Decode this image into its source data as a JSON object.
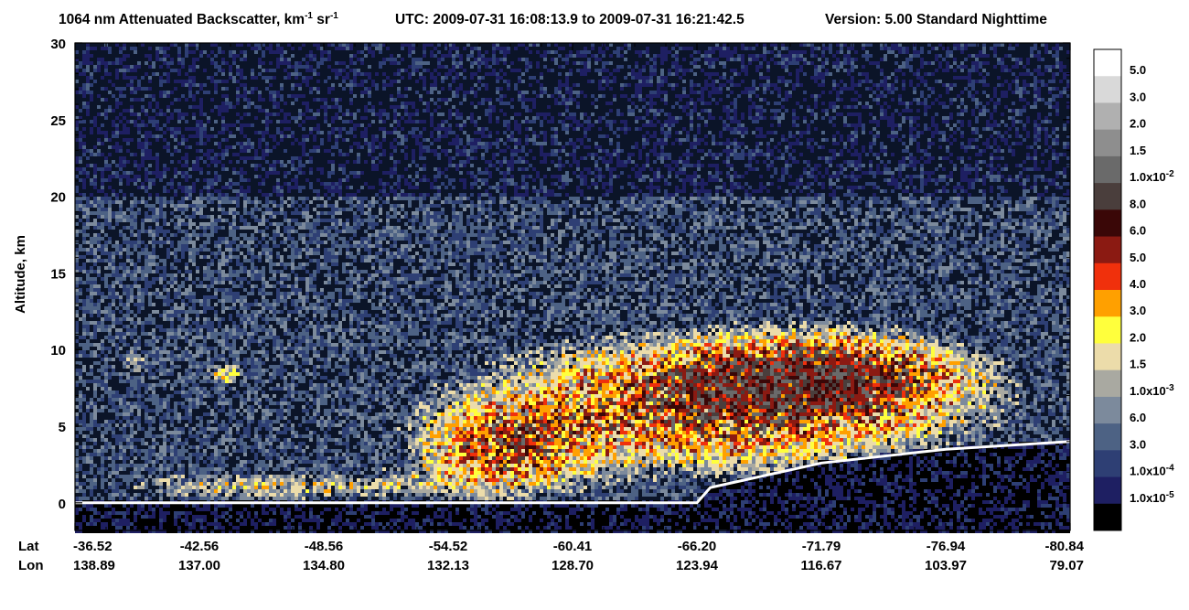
{
  "chart_data": {
    "type": "heatmap",
    "title": {
      "main": "1064 nm Attenuated Backscatter, km",
      "unit_km_exp": "-1",
      "unit_sr": " sr",
      "unit_sr_exp": "-1",
      "utc": "UTC:  2009-07-31 16:08:13.9  to  2009-07-31 16:21:42.5",
      "version": "Version: 5.00  Standard  Nighttime"
    },
    "ylabel": "Altitude, km",
    "ylim": [
      -1.8,
      30
    ],
    "y_ticks": [
      0,
      5,
      10,
      15,
      20,
      25,
      30
    ],
    "x_row_labels": [
      "Lat",
      "Lon"
    ],
    "x_ticks": [
      {
        "lat": "-36.52",
        "lon": "138.89"
      },
      {
        "lat": "-42.56",
        "lon": "137.00"
      },
      {
        "lat": "-48.56",
        "lon": "134.80"
      },
      {
        "lat": "-54.52",
        "lon": "132.13"
      },
      {
        "lat": "-60.41",
        "lon": "128.70"
      },
      {
        "lat": "-66.20",
        "lon": "123.94"
      },
      {
        "lat": "-71.79",
        "lon": "116.67"
      },
      {
        "lat": "-76.94",
        "lon": "103.97"
      },
      {
        "lat": "-80.84",
        "lon": "79.07"
      }
    ],
    "colorbar": [
      {
        "color": "#ffffff",
        "label": "5.0",
        "exp": ""
      },
      {
        "color": "#d9d9d9",
        "label": "3.0",
        "exp": ""
      },
      {
        "color": "#b0b0b0",
        "label": "2.0",
        "exp": ""
      },
      {
        "color": "#8e8e8e",
        "label": "1.5",
        "exp": ""
      },
      {
        "color": "#6a6a6a",
        "label": "1.0x10",
        "exp": "-2"
      },
      {
        "color": "#4a3e3c",
        "label": "8.0",
        "exp": ""
      },
      {
        "color": "#3a0707",
        "label": "6.0",
        "exp": ""
      },
      {
        "color": "#8b1a12",
        "label": "5.0",
        "exp": ""
      },
      {
        "color": "#f0300c",
        "label": "4.0",
        "exp": ""
      },
      {
        "color": "#ffa000",
        "label": "3.0",
        "exp": ""
      },
      {
        "color": "#ffff3c",
        "label": "2.0",
        "exp": ""
      },
      {
        "color": "#ecdcaa",
        "label": "1.5",
        "exp": ""
      },
      {
        "color": "#a9a9a1",
        "label": "1.0x10",
        "exp": "-3"
      },
      {
        "color": "#7c8a9c",
        "label": "6.0",
        "exp": ""
      },
      {
        "color": "#4d6284",
        "label": "3.0",
        "exp": ""
      },
      {
        "color": "#2e3f74",
        "label": "1.0x10",
        "exp": "-4"
      },
      {
        "color": "#1e1f62",
        "label": "1.0x10",
        "exp": "-5"
      },
      {
        "color": "#000000",
        "label": "",
        "exp": ""
      }
    ],
    "surface_altitude_km": [
      {
        "lat": "-36.52",
        "alt": 0.0
      },
      {
        "lat": "-66.20",
        "alt": 0.0
      },
      {
        "lat": "-66.80",
        "alt": 1.0
      },
      {
        "lat": "-71.79",
        "alt": 2.6
      },
      {
        "lat": "-76.94",
        "alt": 3.5
      },
      {
        "lat": "-80.84",
        "alt": 4.0
      }
    ],
    "grid": false
  }
}
